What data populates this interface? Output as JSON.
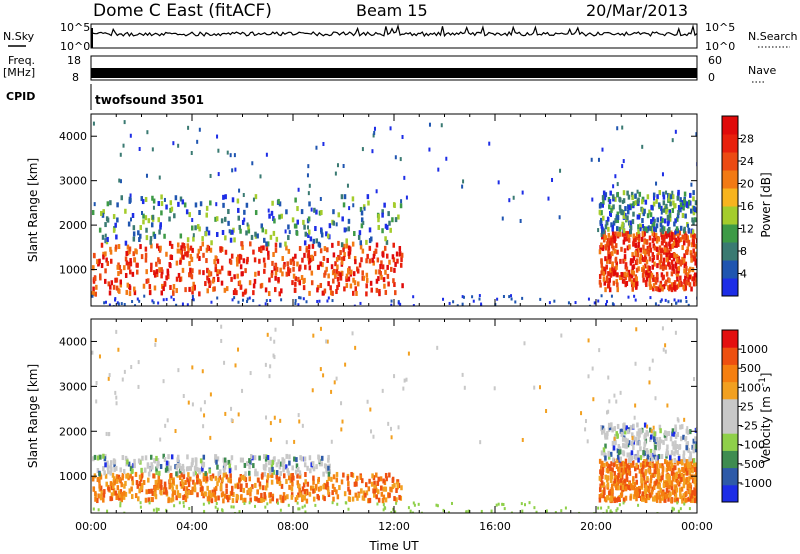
{
  "header": {
    "station": "Dome C East (fitACF)",
    "beam": "Beam 15",
    "date": "20/Mar/2013"
  },
  "noise_panel": {
    "left_label": "N.Sky",
    "right_label": "N.Search",
    "left_ticks": [
      "10^5",
      "10^0"
    ],
    "right_ticks": [
      "10^5",
      "10^0"
    ]
  },
  "freq_panel": {
    "left_label_line1": "Freq.",
    "left_label_line2": "[MHz]",
    "right_label": "Nave",
    "left_ticks": [
      "18",
      "8"
    ],
    "right_ticks": [
      "60",
      "0"
    ]
  },
  "cpid": {
    "label": "CPID",
    "value": "twofsound 3501"
  },
  "chart_data": [
    {
      "type": "heatmap",
      "name": "power",
      "ylabel": "Slant Range [km]",
      "xlabel": "",
      "ylim": [
        180,
        4500
      ],
      "yticks": [
        1000,
        2000,
        3000,
        4000
      ],
      "colorbar": {
        "label": "Power [dB]",
        "ticks": [
          "4",
          "8",
          "12",
          "16",
          "20",
          "24",
          "28"
        ],
        "colors": [
          "#1d2de6",
          "#1f55b0",
          "#3a7a72",
          "#3d9a46",
          "#a4cc2c",
          "#f7b41e",
          "#f27a14",
          "#ec4a12",
          "#e8200c",
          "#e00a0a"
        ]
      },
      "echo_regions": [
        {
          "t_start": 0.0,
          "t_end": 12.3,
          "range_start": 500,
          "range_end": 1650,
          "level": "high"
        },
        {
          "t_start": 20.1,
          "t_end": 24.0,
          "range_start": 600,
          "range_end": 1900,
          "level": "high"
        },
        {
          "t_start": 0.0,
          "t_end": 12.3,
          "range_start": 1600,
          "range_end": 2700,
          "level": "low"
        },
        {
          "t_start": 20.1,
          "t_end": 24.0,
          "range_start": 1900,
          "range_end": 2800,
          "level": "low"
        }
      ]
    },
    {
      "type": "heatmap",
      "name": "velocity",
      "ylabel": "Slant Range [km]",
      "xlabel": "Time UT",
      "ylim": [
        180,
        4500
      ],
      "yticks": [
        1000,
        2000,
        3000,
        4000
      ],
      "xticks": [
        "00:00",
        "04:00",
        "08:00",
        "12:00",
        "16:00",
        "20:00",
        "00:00"
      ],
      "colorbar": {
        "label": "Velocity [m s^-1]",
        "ticks": [
          "1000",
          "500",
          "100",
          "25",
          "-25",
          "-100",
          "-500",
          "-1000"
        ],
        "colors": [
          "#1d2de6",
          "#2e5aa8",
          "#3e8c50",
          "#8fd04a",
          "#c8c8c8",
          "#c8c8c8",
          "#f2a020",
          "#f57f10",
          "#ee5010",
          "#e41010"
        ]
      },
      "echo_regions": [
        {
          "t_start": 0.0,
          "t_end": 12.3,
          "range_start": 500,
          "range_end": 1100,
          "level": "receding"
        },
        {
          "t_start": 0.0,
          "t_end": 9.5,
          "range_start": 1100,
          "range_end": 1500,
          "level": "near-zero"
        },
        {
          "t_start": 20.1,
          "t_end": 24.0,
          "range_start": 500,
          "range_end": 1400,
          "level": "receding"
        },
        {
          "t_start": 20.1,
          "t_end": 24.0,
          "range_start": 1400,
          "range_end": 2200,
          "level": "near-zero"
        }
      ]
    }
  ]
}
